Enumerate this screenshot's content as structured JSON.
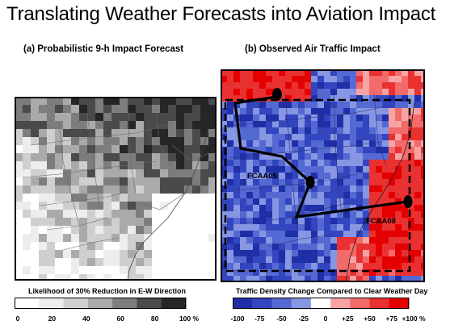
{
  "title": "Translating Weather Forecasts into Aviation Impact",
  "panel_a": {
    "title": "(a) Probabilistic 9-h Impact Forecast",
    "colorbar": {
      "label": "Likelihood of 30% Reduction in E-W Direction",
      "ticks": [
        "0",
        "20",
        "40",
        "60",
        "80",
        "100 %"
      ],
      "colors": [
        "#ffffff",
        "#ededed",
        "#cfcfcf",
        "#aaaaaa",
        "#7d7d7d",
        "#4a4a4a",
        "#262626"
      ]
    }
  },
  "panel_b": {
    "title": "(b) Observed Air Traffic Impact",
    "colorbar": {
      "label": "Traffic Density Change Compared to Clear Weather Day",
      "ticks": [
        "-100",
        "-75",
        "-50",
        "-25",
        "0",
        "+25",
        "+50",
        "+75",
        "+100 %"
      ],
      "colors": [
        "#1f2fa8",
        "#3346bf",
        "#5569d2",
        "#8696e2",
        "#ffffff",
        "#f7a3a3",
        "#f26a6a",
        "#ea3131",
        "#e40000"
      ]
    },
    "routes": [
      {
        "name": "FCAA05"
      },
      {
        "name": "FCAA08"
      }
    ]
  },
  "colors": {
    "blue": "#3a4fc4",
    "red": "#e60000",
    "route": "#000000"
  }
}
